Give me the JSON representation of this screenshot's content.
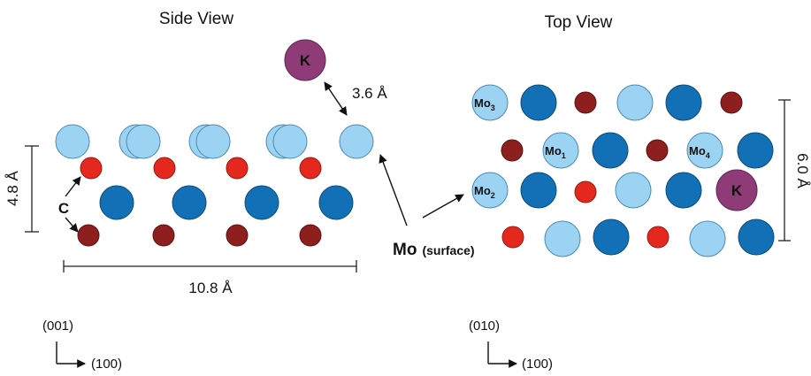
{
  "colors": {
    "mo_light": "#9dd3f2",
    "mo_dark": "#1271b6",
    "c_red": "#e4281e",
    "c_dark": "#8e1f1f",
    "potassium": "#8e3b78"
  },
  "side_view": {
    "title": "Side View",
    "k_label": "K",
    "k_distance": "3.6 Å",
    "height_label": "4.8 Å",
    "width_label": "10.8 Å",
    "carbon_label": "C",
    "axis_vertical": "(001)",
    "axis_horizontal": "(100)"
  },
  "top_view": {
    "title": "Top View",
    "mo3": {
      "base": "Mo",
      "sub": "3"
    },
    "mo1": {
      "base": "Mo",
      "sub": "1"
    },
    "mo4": {
      "base": "Mo",
      "sub": "4"
    },
    "mo2": {
      "base": "Mo",
      "sub": "2"
    },
    "k_label": "K",
    "width_label": "6.0 Å",
    "axis_vertical": "(010)",
    "axis_horizontal": "(100)"
  },
  "mo_surface": {
    "main": "Mo",
    "sub": "(surface)"
  }
}
